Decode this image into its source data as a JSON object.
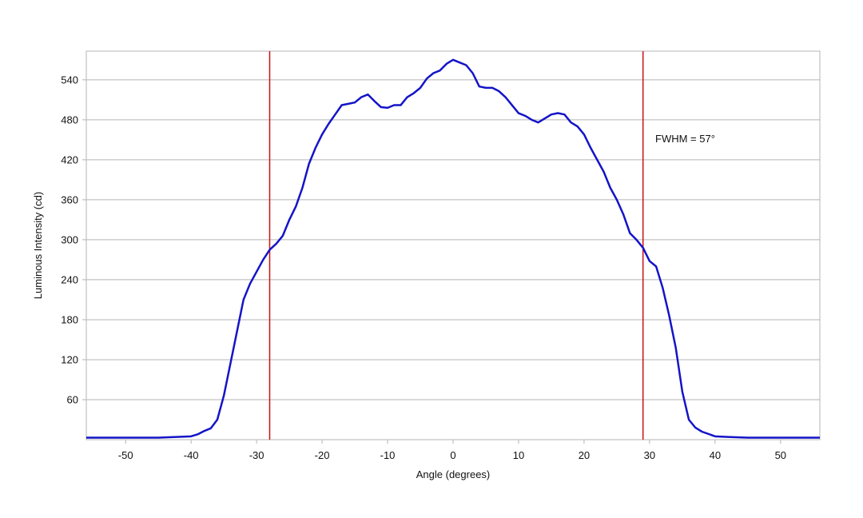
{
  "chart_data": {
    "type": "line",
    "xlabel": "Angle (degrees)",
    "ylabel": "Luminous Intensity (cd)",
    "annotation": "FWHM = 57°",
    "x": [
      -56,
      -50,
      -45,
      -40,
      -39,
      -38,
      -37,
      -36,
      -35,
      -34,
      -33,
      -32,
      -31,
      -30,
      -29,
      -28,
      -27,
      -26,
      -25,
      -24,
      -23,
      -22,
      -21,
      -20,
      -19,
      -18,
      -17,
      -16,
      -15,
      -14,
      -13,
      -12,
      -11,
      -10,
      -9,
      -8,
      -7,
      -6,
      -5,
      -4,
      -3,
      -2,
      -1,
      0,
      1,
      2,
      3,
      4,
      5,
      6,
      7,
      8,
      9,
      10,
      11,
      12,
      13,
      14,
      15,
      16,
      17,
      18,
      19,
      20,
      21,
      22,
      23,
      24,
      25,
      26,
      27,
      28,
      29,
      30,
      31,
      32,
      33,
      34,
      35,
      36,
      37,
      38,
      40,
      42,
      45,
      50,
      56
    ],
    "series": [
      {
        "name": "Luminous Intensity",
        "color": "#1414c8",
        "values": [
          3,
          3,
          3,
          5,
          8,
          13,
          17,
          30,
          66,
          114,
          162,
          210,
          234,
          252,
          270,
          285,
          294,
          306,
          330,
          350,
          378,
          414,
          438,
          458,
          474,
          488,
          502,
          504,
          506,
          514,
          518,
          508,
          499,
          498,
          502,
          502,
          514,
          520,
          528,
          542,
          550,
          554,
          564,
          570,
          566,
          562,
          550,
          530,
          528,
          528,
          523,
          514,
          502,
          490,
          486,
          480,
          476,
          482,
          488,
          490,
          488,
          476,
          470,
          458,
          438,
          420,
          402,
          378,
          360,
          338,
          310,
          300,
          288,
          268,
          260,
          228,
          186,
          138,
          72,
          30,
          18,
          12,
          5,
          4,
          3,
          3,
          3
        ]
      }
    ],
    "vlines": [
      -28,
      29
    ],
    "vline_color": "#cc1111",
    "xlim": [
      -56,
      56
    ],
    "xticks": [
      -50,
      -40,
      -30,
      -20,
      -10,
      0,
      10,
      20,
      30,
      40,
      50
    ],
    "ylim": [
      0,
      583
    ],
    "yticks": [
      60,
      120,
      180,
      240,
      300,
      360,
      420,
      480,
      540
    ],
    "grid": true
  }
}
